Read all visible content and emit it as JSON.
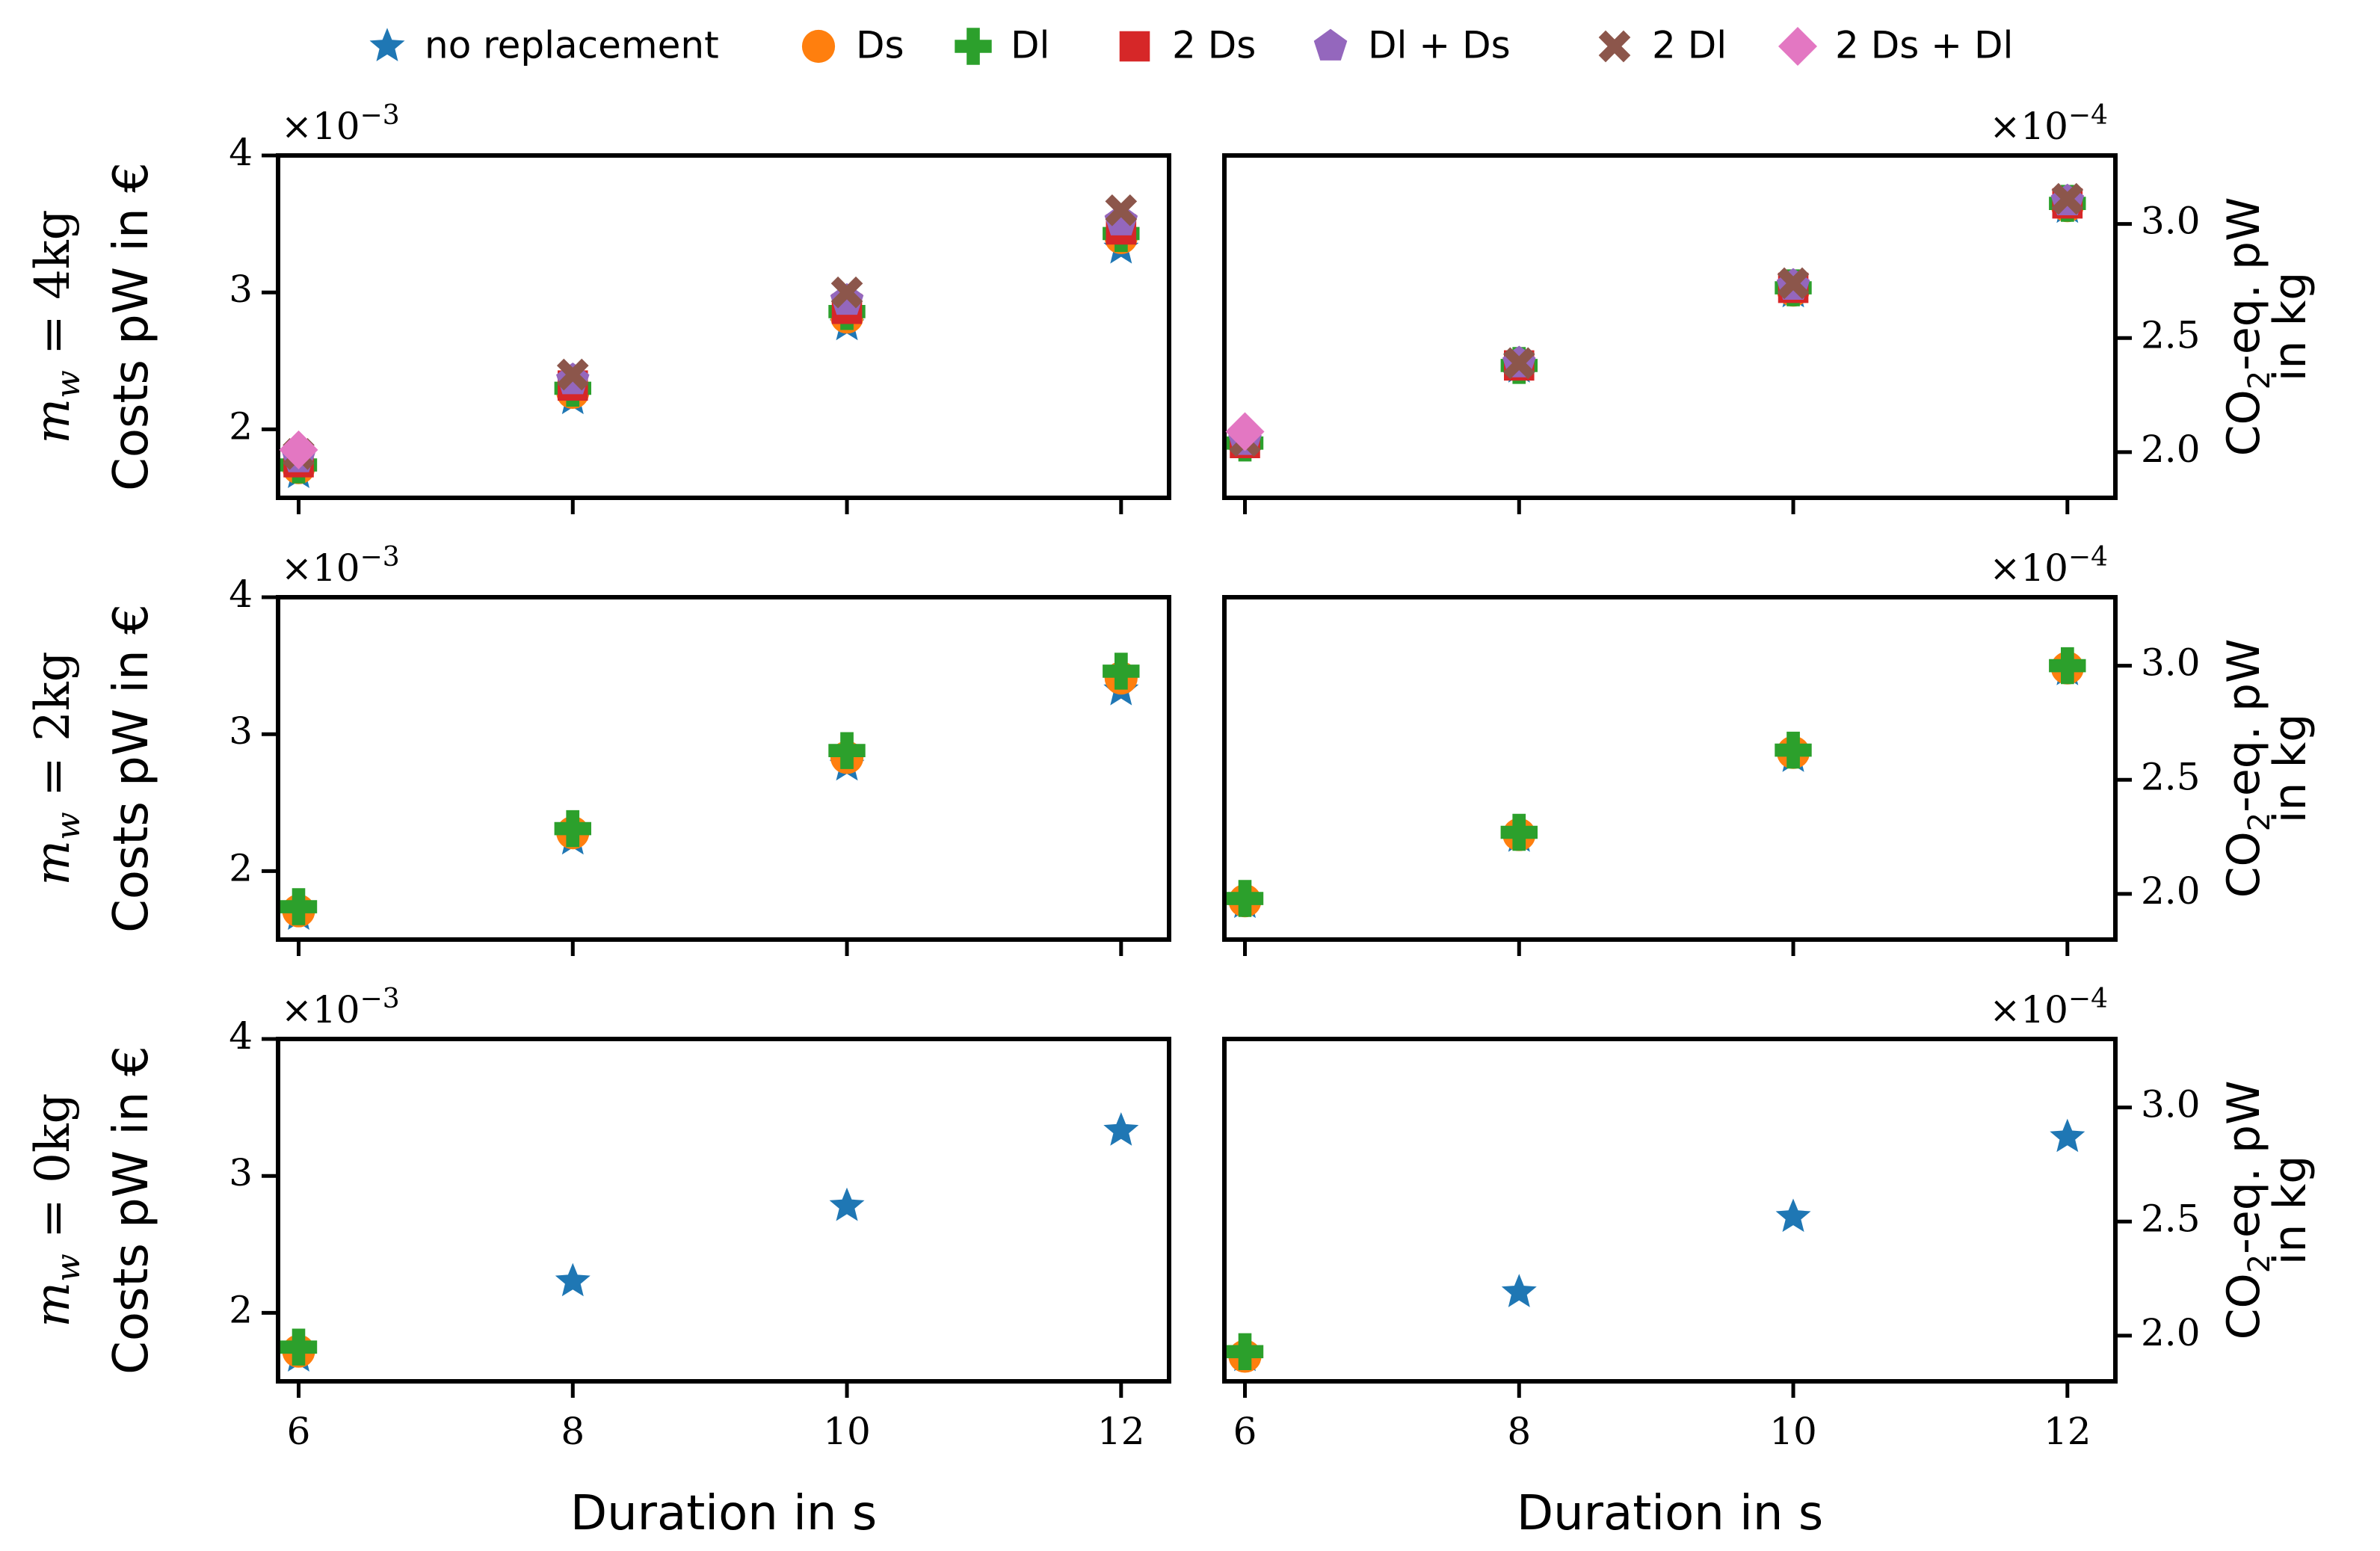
{
  "legend": {
    "items": [
      {
        "id": "none",
        "label": "no replacement",
        "color": "#1f77b4",
        "marker": "star"
      },
      {
        "id": "Ds",
        "label": "Ds",
        "color": "#ff7f0e",
        "marker": "circle"
      },
      {
        "id": "Dl",
        "label": "Dl",
        "color": "#2ca02c",
        "marker": "plus"
      },
      {
        "id": "2Ds",
        "label": "2 Ds",
        "color": "#d62728",
        "marker": "square"
      },
      {
        "id": "DlDs",
        "label": "Dl + Ds",
        "color": "#9467bd",
        "marker": "pentagon"
      },
      {
        "id": "2Dl",
        "label": "2 Dl",
        "color": "#8c564b",
        "marker": "x"
      },
      {
        "id": "2DsDl",
        "label": "2 Ds + Dl",
        "color": "#e377c2",
        "marker": "diamond"
      }
    ]
  },
  "chart_data": [
    {
      "type": "scatter",
      "row_label": "m_w = 4kg",
      "title": "",
      "xlabel": "",
      "ylabel": "Costs pW in €",
      "y_axis_side": "left",
      "exponent_label": "×10^-3",
      "x_ticks": [
        6,
        8,
        10,
        12
      ],
      "x_tick_labels_shown": false,
      "xlim": [
        5.85,
        12.35
      ],
      "ylim": [
        1.5,
        4.0
      ],
      "y_ticks": [
        2,
        3,
        4
      ],
      "series": [
        {
          "name": "no replacement",
          "x": [
            6,
            8,
            10,
            12
          ],
          "y": [
            1.68,
            2.22,
            2.76,
            3.32
          ]
        },
        {
          "name": "Ds",
          "x": [
            6,
            8,
            10,
            12
          ],
          "y": [
            1.72,
            2.27,
            2.82,
            3.4
          ]
        },
        {
          "name": "Dl",
          "x": [
            6,
            8,
            10,
            12
          ],
          "y": [
            1.74,
            2.3,
            2.86,
            3.43
          ]
        },
        {
          "name": "2 Ds",
          "x": [
            6,
            8,
            10,
            12
          ],
          "y": [
            1.76,
            2.32,
            2.88,
            3.46
          ]
        },
        {
          "name": "Dl + Ds",
          "x": [
            6,
            8,
            10,
            12
          ],
          "y": [
            1.79,
            2.36,
            2.94,
            3.52
          ]
        },
        {
          "name": "2 Dl",
          "x": [
            6,
            8,
            10,
            12
          ],
          "y": [
            1.82,
            2.4,
            3.0,
            3.6
          ]
        },
        {
          "name": "2 Ds + Dl",
          "x": [
            6
          ],
          "y": [
            1.85
          ]
        }
      ]
    },
    {
      "type": "scatter",
      "row_label": "m_w = 4kg",
      "title": "",
      "xlabel": "",
      "ylabel": "CO2-eq. pW in kg",
      "y_axis_side": "right",
      "exponent_label": "×10^-4",
      "x_ticks": [
        6,
        8,
        10,
        12
      ],
      "x_tick_labels_shown": false,
      "xlim": [
        5.85,
        12.35
      ],
      "ylim": [
        1.8,
        3.3
      ],
      "y_ticks": [
        2.0,
        2.5,
        3.0
      ],
      "series": [
        {
          "name": "no replacement",
          "x": [
            6,
            8,
            10,
            12
          ],
          "y": [
            2.04,
            2.37,
            2.7,
            3.07
          ]
        },
        {
          "name": "Ds",
          "x": [
            6,
            8,
            10,
            12
          ],
          "y": [
            2.04,
            2.38,
            2.71,
            3.08
          ]
        },
        {
          "name": "Dl",
          "x": [
            6,
            8,
            10,
            12
          ],
          "y": [
            2.04,
            2.38,
            2.72,
            3.09
          ]
        },
        {
          "name": "2 Ds",
          "x": [
            6,
            8,
            10,
            12
          ],
          "y": [
            2.04,
            2.38,
            2.72,
            3.09
          ]
        },
        {
          "name": "Dl + Ds",
          "x": [
            6,
            8,
            10,
            12
          ],
          "y": [
            2.05,
            2.39,
            2.73,
            3.1
          ]
        },
        {
          "name": "2 Dl",
          "x": [
            6,
            8,
            10,
            12
          ],
          "y": [
            2.05,
            2.39,
            2.74,
            3.11
          ]
        },
        {
          "name": "2 Ds + Dl",
          "x": [
            6
          ],
          "y": [
            2.09
          ]
        }
      ]
    },
    {
      "type": "scatter",
      "row_label": "m_w = 2kg",
      "title": "",
      "xlabel": "",
      "ylabel": "Costs pW in €",
      "y_axis_side": "left",
      "exponent_label": "×10^-3",
      "x_ticks": [
        6,
        8,
        10,
        12
      ],
      "x_tick_labels_shown": false,
      "xlim": [
        5.85,
        12.35
      ],
      "ylim": [
        1.5,
        4.0
      ],
      "y_ticks": [
        2,
        3,
        4
      ],
      "series": [
        {
          "name": "no replacement",
          "x": [
            6,
            8,
            10,
            12
          ],
          "y": [
            1.68,
            2.23,
            2.77,
            3.32
          ]
        },
        {
          "name": "Ds",
          "x": [
            6,
            8,
            10,
            12
          ],
          "y": [
            1.71,
            2.28,
            2.83,
            3.41
          ]
        },
        {
          "name": "Dl",
          "x": [
            6,
            8,
            10,
            12
          ],
          "y": [
            1.74,
            2.31,
            2.88,
            3.46
          ]
        }
      ]
    },
    {
      "type": "scatter",
      "row_label": "m_w = 2kg",
      "title": "",
      "xlabel": "",
      "ylabel": "CO2-eq. pW in kg",
      "y_axis_side": "right",
      "exponent_label": "×10^-4",
      "x_ticks": [
        6,
        8,
        10,
        12
      ],
      "x_tick_labels_shown": false,
      "xlim": [
        5.85,
        12.35
      ],
      "ylim": [
        1.8,
        3.3
      ],
      "y_ticks": [
        2.0,
        2.5,
        3.0
      ],
      "series": [
        {
          "name": "no replacement",
          "x": [
            6,
            8,
            10,
            12
          ],
          "y": [
            1.96,
            2.25,
            2.6,
            2.98
          ]
        },
        {
          "name": "Ds",
          "x": [
            6,
            8,
            10,
            12
          ],
          "y": [
            1.97,
            2.26,
            2.62,
            2.99
          ]
        },
        {
          "name": "Dl",
          "x": [
            6,
            8,
            10,
            12
          ],
          "y": [
            1.98,
            2.27,
            2.63,
            3.0
          ]
        }
      ]
    },
    {
      "type": "scatter",
      "row_label": "m_w = 0kg",
      "title": "",
      "xlabel": "Duration in s",
      "ylabel": "Costs pW in €",
      "y_axis_side": "left",
      "exponent_label": "×10^-3",
      "x_ticks": [
        6,
        8,
        10,
        12
      ],
      "x_tick_labels_shown": true,
      "xlim": [
        5.85,
        12.35
      ],
      "ylim": [
        1.5,
        4.0
      ],
      "y_ticks": [
        2,
        3,
        4
      ],
      "series": [
        {
          "name": "no replacement",
          "x": [
            6,
            8,
            10,
            12
          ],
          "y": [
            1.68,
            2.23,
            2.78,
            3.33
          ]
        },
        {
          "name": "Ds",
          "x": [
            6
          ],
          "y": [
            1.72
          ]
        },
        {
          "name": "Dl",
          "x": [
            6
          ],
          "y": [
            1.75
          ]
        }
      ]
    },
    {
      "type": "scatter",
      "row_label": "m_w = 0kg",
      "title": "",
      "xlabel": "Duration in s",
      "ylabel": "CO2-eq. pW in kg",
      "y_axis_side": "right",
      "exponent_label": "×10^-4",
      "x_ticks": [
        6,
        8,
        10,
        12
      ],
      "x_tick_labels_shown": true,
      "xlim": [
        5.85,
        12.35
      ],
      "ylim": [
        1.8,
        3.3
      ],
      "y_ticks": [
        2.0,
        2.5,
        3.0
      ],
      "series": [
        {
          "name": "no replacement",
          "x": [
            6,
            8,
            10,
            12
          ],
          "y": [
            1.91,
            2.19,
            2.52,
            2.87
          ]
        },
        {
          "name": "Ds",
          "x": [
            6
          ],
          "y": [
            1.91
          ]
        },
        {
          "name": "Dl",
          "x": [
            6
          ],
          "y": [
            1.93
          ]
        }
      ]
    }
  ]
}
